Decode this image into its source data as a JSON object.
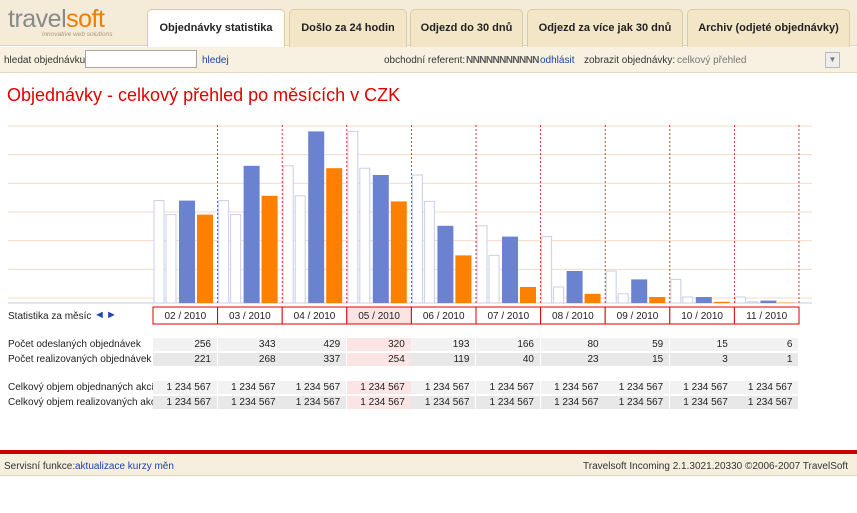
{
  "brand": {
    "logo_part1": "travel",
    "logo_part2": "soft",
    "tagline": "innovative web solutions"
  },
  "tabs": [
    {
      "label": "Objednávky statistika",
      "active": true
    },
    {
      "label": "Došlo za 24 hodin",
      "active": false
    },
    {
      "label": "Odjezd do 30 dnů",
      "active": false
    },
    {
      "label": "Odjezd za více jak 30 dnů",
      "active": false
    },
    {
      "label": "Archiv (odjeté objednávky)",
      "active": false
    }
  ],
  "search": {
    "label": "hledat objednávku:",
    "value": "",
    "placeholder": "",
    "button": "hledej",
    "referent_label": "obchodní referent:",
    "referent_name": "NNNNNNNNNNN",
    "logout": "odhlásit",
    "view_label": "zobrazit objednávky:",
    "view_value": "celkový přehled"
  },
  "page_title": "Objednávky - celkový přehled po měsících v CZK",
  "stat_label": "Statistika za měsíc",
  "nav": {
    "prev": "◄",
    "next": "►"
  },
  "colors": {
    "sent": "#6b82d0",
    "realized": "#ff7f00",
    "previous": "#c8cfe8",
    "highlight": "#fbe4e4",
    "border": "#e00000"
  },
  "chart_data": {
    "type": "bar",
    "categories": [
      "02 / 2010",
      "03 / 2010",
      "04 / 2010",
      "05 / 2010",
      "06 / 2010",
      "07 / 2010",
      "08 / 2010",
      "09 / 2010",
      "10 / 2010",
      "11 / 2010"
    ],
    "highlight_category": "05 / 2010",
    "series": [
      {
        "name": "Počet odeslaných objednávek",
        "values": [
          256,
          343,
          429,
          320,
          193,
          166,
          80,
          59,
          15,
          6
        ]
      },
      {
        "name": "Počet realizovaných objednávek",
        "values": [
          221,
          268,
          337,
          254,
          119,
          40,
          23,
          15,
          3,
          1
        ]
      }
    ],
    "ylim": [
      0,
      430
    ],
    "grid": true
  },
  "rows": [
    {
      "label": "Počet odeslaných objednávek",
      "values": [
        "256",
        "343",
        "429",
        "320",
        "193",
        "166",
        "80",
        "59",
        "15",
        "6"
      ]
    },
    {
      "label": "Počet realizovaných objednávek",
      "values": [
        "221",
        "268",
        "337",
        "254",
        "119",
        "40",
        "23",
        "15",
        "3",
        "1"
      ]
    },
    {
      "label": "Celkový objem objednaných akcí",
      "values": [
        "1 234 567",
        "1 234 567",
        "1 234 567",
        "1 234 567",
        "1 234 567",
        "1 234 567",
        "1 234 567",
        "1 234 567",
        "1 234 567",
        "1 234 567"
      ]
    },
    {
      "label": "Celkový objem realizovaných akcí",
      "values": [
        "1 234 567",
        "1 234 567",
        "1 234 567",
        "1 234 567",
        "1 234 567",
        "1 234 567",
        "1 234 567",
        "1 234 567",
        "1 234 567",
        "1 234 567"
      ]
    }
  ],
  "footer": {
    "service_label": "Servisní funkce:",
    "service_link": "aktualizace kurzy měn",
    "version": "Travelsoft Incoming 2.1.3021.20330 ©2006-2007 TravelSoft"
  }
}
